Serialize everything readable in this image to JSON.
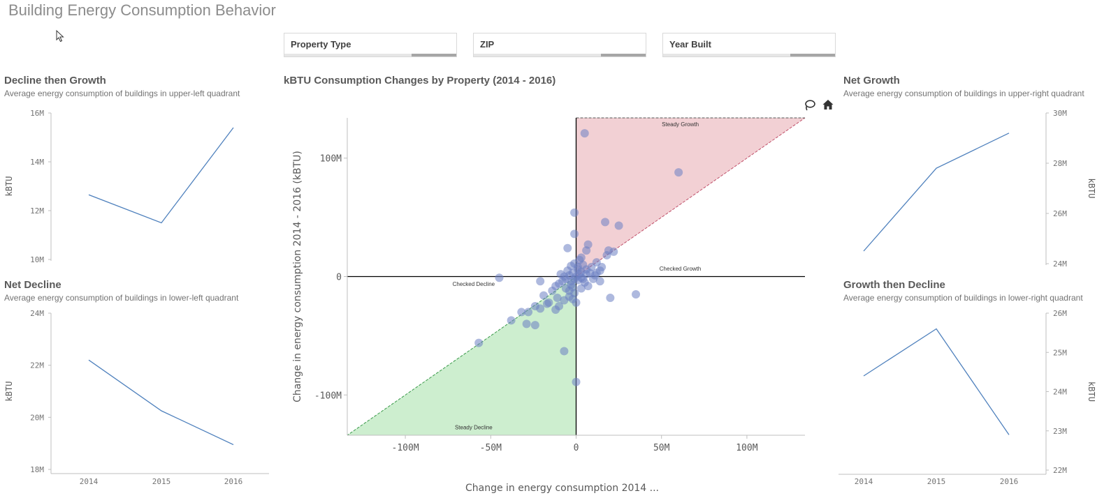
{
  "page": {
    "title": "Building Energy Consumption Behavior"
  },
  "filters": [
    {
      "label": "Property Type"
    },
    {
      "label": "ZIP"
    },
    {
      "label": "Year Built"
    }
  ],
  "colors": {
    "line": "#4f81bd",
    "points": "#6b80c2",
    "growth_fill": "#f2d0d4",
    "decline_fill": "#cdeecf",
    "growth_line": "#c0506a",
    "decline_line": "#3a9a4a"
  },
  "chart_data": [
    {
      "id": "decline-then-growth",
      "type": "line",
      "title": "Decline then Growth",
      "subtitle": "Average energy consumption of buildings in upper-left quadrant",
      "ylabel": "kBTU",
      "yaxis_side": "left",
      "categories": [
        "2014",
        "2015",
        "2016"
      ],
      "series": [
        {
          "values": [
            12.65,
            11.5,
            15.4
          ]
        }
      ],
      "ylim": [
        10,
        16
      ],
      "yticks": [
        10,
        12,
        14,
        16
      ],
      "ytick_labels": [
        "10M",
        "12M",
        "14M",
        "16M"
      ],
      "show_xticks": false
    },
    {
      "id": "net-growth",
      "type": "line",
      "title": "Net Growth",
      "subtitle": "Average energy consumption of buildings in upper-right quadrant",
      "ylabel": "kBTU",
      "yaxis_side": "right",
      "categories": [
        "2014",
        "2015",
        "2016"
      ],
      "series": [
        {
          "values": [
            24.5,
            27.8,
            29.2
          ]
        }
      ],
      "ylim": [
        24,
        30
      ],
      "yticks": [
        24,
        26,
        28,
        30
      ],
      "ytick_labels": [
        "24M",
        "26M",
        "28M",
        "30M"
      ],
      "show_xticks": false
    },
    {
      "id": "net-decline",
      "type": "line",
      "title": "Net Decline",
      "subtitle": "Average energy consumption of buildings in lower-left quadrant",
      "ylabel": "kBTU",
      "yaxis_side": "left",
      "categories": [
        "2014",
        "2015",
        "2016"
      ],
      "series": [
        {
          "values": [
            22.2,
            20.25,
            18.95
          ]
        }
      ],
      "ylim": [
        18,
        24
      ],
      "yticks": [
        18,
        20,
        22,
        24
      ],
      "ytick_labels": [
        "18M",
        "20M",
        "22M",
        "24M"
      ],
      "show_xticks": true
    },
    {
      "id": "growth-then-decline",
      "type": "line",
      "title": "Growth then Decline",
      "subtitle": "Average energy consumption of buildings in lower-right quadrant",
      "ylabel": "kBTU",
      "yaxis_side": "right",
      "categories": [
        "2014",
        "2015",
        "2016"
      ],
      "series": [
        {
          "values": [
            24.4,
            25.6,
            22.9
          ]
        }
      ],
      "ylim": [
        22,
        26
      ],
      "yticks": [
        22,
        23,
        24,
        25,
        26
      ],
      "ytick_labels": [
        "22M",
        "23M",
        "24M",
        "25M",
        "26M"
      ],
      "show_xticks": true
    },
    {
      "id": "kbtu-scatter",
      "type": "scatter",
      "title": "kBTU Consumption Changes by Property (2014 - 2016)",
      "xlabel": "Change in energy consumption 2014 ...",
      "ylabel": "Change in energy consumption 2014 - 2016 (kBTU)",
      "xlim": [
        -134,
        134
      ],
      "ylim": [
        -134,
        134
      ],
      "xticks": [
        -100,
        -50,
        0,
        50,
        100
      ],
      "xtick_labels": [
        "-100M",
        "-50M",
        "0",
        "50M",
        "100M"
      ],
      "yticks": [
        -100,
        0,
        100
      ],
      "ytick_labels": [
        "-100M",
        "0",
        "100M"
      ],
      "annotations": [
        {
          "text": "Steady Growth",
          "x": 61,
          "y": 127
        },
        {
          "text": "Checked Growth",
          "x": 61,
          "y": 5
        },
        {
          "text": "Checked Decline",
          "x": -60,
          "y": -8
        },
        {
          "text": "Steady Decline",
          "x": -60,
          "y": -129
        }
      ],
      "points": [
        [
          5,
          121
        ],
        [
          60,
          88
        ],
        [
          -1,
          54
        ],
        [
          -1,
          36
        ],
        [
          17,
          46
        ],
        [
          25,
          43
        ],
        [
          -5,
          24
        ],
        [
          7,
          27
        ],
        [
          6,
          22
        ],
        [
          19,
          22
        ],
        [
          22,
          21
        ],
        [
          -3,
          9
        ],
        [
          12,
          12
        ],
        [
          2,
          14
        ],
        [
          9,
          8
        ],
        [
          4,
          10
        ],
        [
          15,
          8
        ],
        [
          18,
          18
        ],
        [
          1,
          6
        ],
        [
          3,
          4
        ],
        [
          6,
          2
        ],
        [
          8,
          3
        ],
        [
          11,
          1
        ],
        [
          14,
          5
        ],
        [
          -2,
          3
        ],
        [
          -4,
          1
        ],
        [
          -6,
          -2
        ],
        [
          -8,
          -4
        ],
        [
          -10,
          -6
        ],
        [
          -3,
          -7
        ],
        [
          -1,
          -2
        ],
        [
          0,
          0
        ],
        [
          1,
          -3
        ],
        [
          3,
          -1
        ],
        [
          5,
          -5
        ],
        [
          -5,
          5
        ],
        [
          -7,
          0
        ],
        [
          -9,
          2
        ],
        [
          2,
          2
        ],
        [
          4,
          -2
        ],
        [
          6,
          6
        ],
        [
          -2,
          -9
        ],
        [
          -4,
          -12
        ],
        [
          -1,
          -14
        ],
        [
          -12,
          -8
        ],
        [
          0,
          -22
        ],
        [
          -7,
          -20
        ],
        [
          -11,
          -18
        ],
        [
          -14,
          -12
        ],
        [
          -16,
          -22
        ],
        [
          -19,
          -16
        ],
        [
          -21,
          -27
        ],
        [
          -24,
          -25
        ],
        [
          -28,
          -30
        ],
        [
          -32,
          -30
        ],
        [
          -10,
          -25
        ],
        [
          -12,
          -28
        ],
        [
          -17,
          -23
        ],
        [
          -4,
          -17
        ],
        [
          -2,
          -19
        ],
        [
          -38,
          -37
        ],
        [
          -29,
          -40
        ],
        [
          -24,
          -41
        ],
        [
          -57,
          -56
        ],
        [
          -7,
          -63
        ],
        [
          0,
          -89
        ],
        [
          -45,
          -1
        ],
        [
          -21,
          -4
        ],
        [
          14,
          -4
        ],
        [
          20,
          -18
        ],
        [
          35,
          -15
        ],
        [
          3,
          -10
        ],
        [
          7,
          -8
        ],
        [
          -6,
          -10
        ],
        [
          10,
          -2
        ],
        [
          12,
          3
        ],
        [
          -3,
          -4
        ],
        [
          1,
          8
        ],
        [
          3,
          16
        ],
        [
          -1,
          11
        ]
      ]
    }
  ]
}
